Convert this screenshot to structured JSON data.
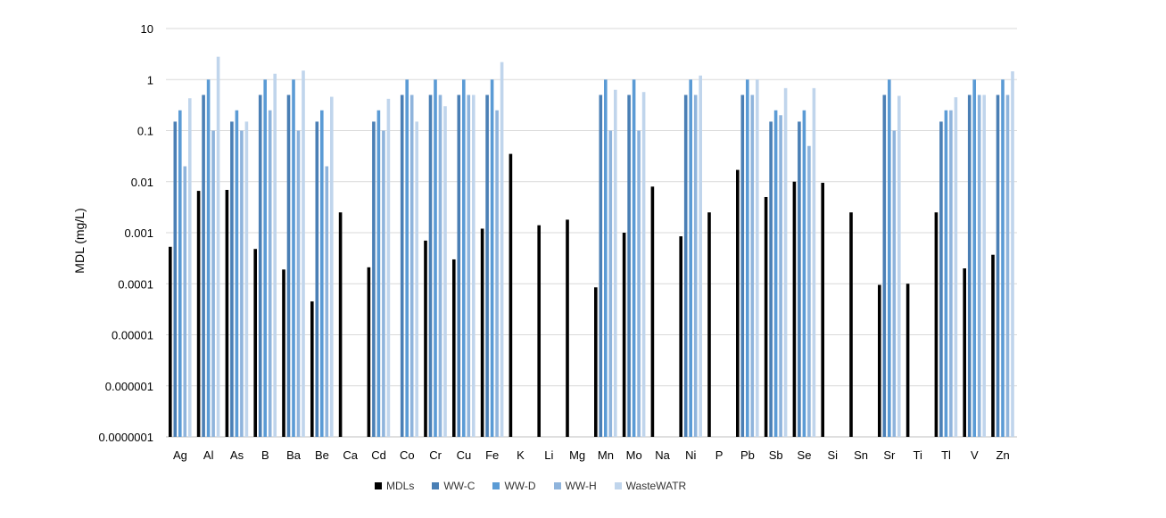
{
  "chart_data": {
    "type": "bar",
    "ylabel": "MDL (mg/L)",
    "xlabel": "",
    "yscale": "log",
    "ylim": [
      1e-07,
      10
    ],
    "yticks": [
      "10",
      "1",
      "0.1",
      "0.01",
      "0.001",
      "0.0001",
      "0.00001",
      "0.000001",
      "0.0000001"
    ],
    "grid": "horizontal",
    "legend_position": "bottom",
    "categories": [
      "Ag",
      "Al",
      "As",
      "B",
      "Ba",
      "Be",
      "Ca",
      "Cd",
      "Co",
      "Cr",
      "Cu",
      "Fe",
      "K",
      "Li",
      "Mg",
      "Mn",
      "Mo",
      "Na",
      "Ni",
      "P",
      "Pb",
      "Sb",
      "Se",
      "Si",
      "Sn",
      "Sr",
      "Ti",
      "Tl",
      "V",
      "Zn"
    ],
    "series": [
      {
        "name": "MDLs",
        "color": "#000000",
        "values": [
          0.00053,
          0.0066,
          0.0069,
          0.00048,
          0.00019,
          4.5e-05,
          0.0025,
          0.00021,
          null,
          0.0007,
          0.0003,
          0.0012,
          0.035,
          0.0014,
          0.0018,
          8.5e-05,
          0.001,
          0.008,
          0.00085,
          0.0025,
          0.017,
          0.005,
          0.01,
          0.0095,
          0.0025,
          9.5e-05,
          0.0001,
          0.0025,
          0.0002,
          0.00037
        ]
      },
      {
        "name": "WW-C",
        "color": "#4a7fb5",
        "values": [
          0.15,
          0.5,
          0.15,
          0.5,
          0.5,
          0.15,
          null,
          0.15,
          0.5,
          0.5,
          0.5,
          0.5,
          null,
          null,
          null,
          0.5,
          0.5,
          null,
          0.5,
          null,
          0.5,
          0.15,
          0.15,
          null,
          null,
          0.5,
          null,
          0.15,
          0.5,
          0.5
        ]
      },
      {
        "name": "WW-D",
        "color": "#5b9bd5",
        "values": [
          0.25,
          1,
          0.25,
          1,
          1,
          0.25,
          null,
          0.25,
          1,
          1,
          1,
          1,
          null,
          null,
          null,
          1,
          1,
          null,
          1,
          null,
          1,
          0.25,
          0.25,
          null,
          null,
          1,
          null,
          0.25,
          1,
          1
        ]
      },
      {
        "name": "WW-H",
        "color": "#8fb4dc",
        "values": [
          0.02,
          0.1,
          0.1,
          0.25,
          0.1,
          0.02,
          null,
          0.1,
          0.5,
          0.5,
          0.5,
          0.25,
          null,
          null,
          null,
          0.1,
          0.1,
          null,
          0.5,
          null,
          0.5,
          0.2,
          0.05,
          null,
          null,
          0.1,
          null,
          0.25,
          0.5,
          0.5
        ]
      },
      {
        "name": "WasteWATR",
        "color": "#c0d5ec",
        "values": [
          0.43,
          2.8,
          0.15,
          1.3,
          1.5,
          0.46,
          null,
          0.42,
          0.15,
          0.3,
          0.5,
          2.2,
          null,
          null,
          null,
          0.63,
          0.57,
          null,
          1.2,
          null,
          1,
          0.68,
          0.68,
          null,
          null,
          0.48,
          null,
          0.45,
          0.5,
          1.45
        ]
      }
    ]
  }
}
